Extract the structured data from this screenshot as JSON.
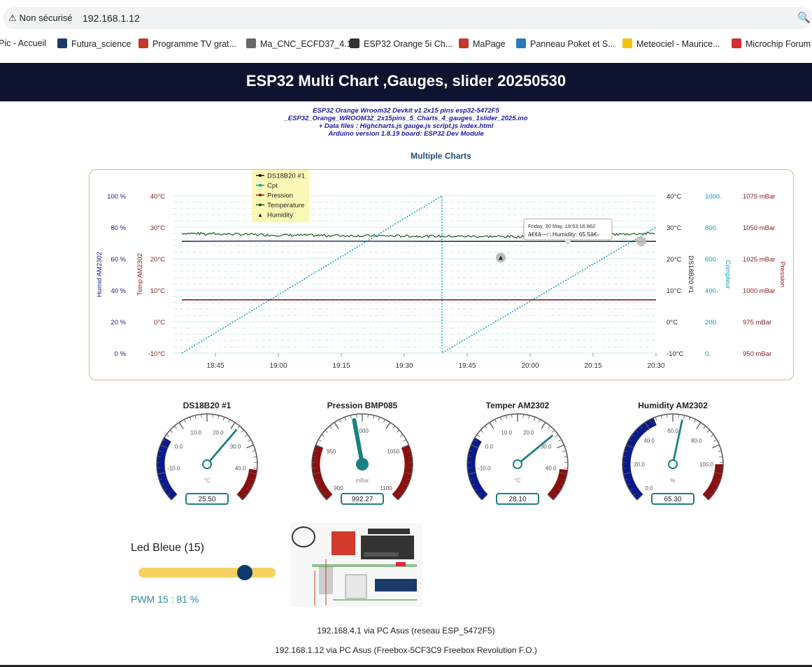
{
  "browser": {
    "security_label": "Non sécurisé",
    "url": "192.168.1.12",
    "bookmarks": [
      {
        "label": "Pic - Accueil",
        "color": "#ffffff"
      },
      {
        "label": "Futura_science",
        "color": "#1a3a6a"
      },
      {
        "label": "Programme TV grat...",
        "color": "#c0392b"
      },
      {
        "label": "Ma_CNC_ECFD37_4.1",
        "color": "#666666"
      },
      {
        "label": "ESP32 Orange 5i Ch...",
        "color": "#333333"
      },
      {
        "label": "MaPage",
        "color": "#c0392b"
      },
      {
        "label": "Panneau Poket et S...",
        "color": "#2a7ab8"
      },
      {
        "label": "Meteociel - Maurice...",
        "color": "#f4c20d"
      },
      {
        "label": "Microchip Forum",
        "color": "#d32f2f"
      }
    ]
  },
  "header": {
    "title": "ESP32 Multi Chart ,Gauges, slider 20250530",
    "info_lines": [
      "ESP32 Orange Wroom32 Devkit v1 2x15 pins esp32-5472F5",
      "_ESP32_Orange_WROOM32_2x15pins_5_Charts_4_gauges_1slider_2025.ino",
      "+ Data files : Highcharts.js gauge.js script.js index.html",
      "Arduino version 1.8.19 board: ESP32 Dev Module"
    ]
  },
  "chart": {
    "section_title": "Multiple Charts",
    "tooltip_date": "Friday, 30 May, 19:53:16.862",
    "tooltip_value": "â€¢â—□ Humidity: 65.5â€‹",
    "legend_marker": "▲"
  },
  "chart_data": {
    "type": "line",
    "title": "Multiple Charts",
    "x_ticks": [
      "18:45",
      "19:00",
      "19:15",
      "19:30",
      "19:45",
      "20:00",
      "20:15",
      "20:30"
    ],
    "xlim": [
      "18:35",
      "20:30"
    ],
    "legend_position": "top-left",
    "axes": [
      {
        "name": "Humid AM2302",
        "ticks": [
          "100 %",
          "80 %",
          "60 %",
          "40 %",
          "20 %",
          "0 %"
        ],
        "range": [
          0,
          100
        ],
        "color": "#1a1a8c"
      },
      {
        "name": "Temp AM2302",
        "ticks": [
          "40°C",
          "30°C",
          "20°C",
          "10°C",
          "0°C",
          "-10°C"
        ],
        "range": [
          -10,
          40
        ],
        "color": "#8b1a1a"
      },
      {
        "name": "DS18B20 #1",
        "ticks": [
          "40°C",
          "30°C",
          "20°C",
          "10°C",
          "0°C",
          "-10°C"
        ],
        "range": [
          -10,
          40
        ],
        "color": "#222222"
      },
      {
        "name": "Compteur",
        "ticks": [
          "1000.",
          "800.",
          "600.",
          "400.",
          "200.",
          "0."
        ],
        "range": [
          0,
          1000
        ],
        "color": "#0aa0b8"
      },
      {
        "name": "Pression",
        "ticks": [
          "1075 mBar",
          "1050 mBar",
          "1025 mBar",
          "1000 mBar",
          "975 mBar",
          "950 mBar"
        ],
        "range": [
          950,
          1075
        ],
        "color": "#8b1a1a"
      }
    ],
    "series": [
      {
        "name": "DS18B20 #1",
        "color": "#111111",
        "points": [
          [
            "18:37",
            25.5
          ],
          [
            "18:55",
            25.6
          ],
          [
            "19:40",
            25.5
          ],
          [
            "20:30",
            25.5
          ]
        ]
      },
      {
        "name": "Cpt",
        "color": "#0aa0b8",
        "points": [
          [
            "18:37",
            0
          ],
          [
            "19:39",
            1000
          ],
          [
            "19:39",
            0
          ],
          [
            "20:30",
            800
          ]
        ]
      },
      {
        "name": "Pression",
        "color": "#8b1a1a",
        "points": [
          [
            "18:37",
            992.3
          ],
          [
            "20:30",
            992.3
          ]
        ]
      },
      {
        "name": "Temperature",
        "color": "#1a5c1a",
        "points": [
          [
            "18:37",
            28.1
          ],
          [
            "19:00",
            27.5
          ],
          [
            "19:30",
            27.2
          ],
          [
            "20:00",
            27.0
          ],
          [
            "20:30",
            28.1
          ]
        ]
      },
      {
        "name": "Humidity",
        "color": "#111111",
        "points": [
          [
            "19:53",
            65.5
          ]
        ]
      }
    ]
  },
  "gauges": [
    {
      "title": "DS18B20 #1",
      "unit": "°C",
      "value": 25.5,
      "display": "25.50",
      "min": -20,
      "max": 50,
      "ticks": [
        {
          "v": -10,
          "label": "-10.0"
        },
        {
          "v": 0,
          "label": "0.0"
        },
        {
          "v": 10,
          "label": "10.0"
        },
        {
          "v": 20,
          "label": "20.0"
        },
        {
          "v": 30,
          "label": "30.0"
        },
        {
          "v": 40,
          "label": "40.0"
        }
      ],
      "bands": [
        {
          "from": -20,
          "to": 0,
          "color": "#0a1a8c"
        },
        {
          "from": 40,
          "to": 50,
          "color": "#8b1010"
        }
      ]
    },
    {
      "title": "Pression BMP085",
      "unit": "mBar",
      "value": 992.27,
      "display": "992.27",
      "min": 900,
      "max": 1100,
      "ticks": [
        {
          "v": 900,
          "label": "900"
        },
        {
          "v": 950,
          "label": "950"
        },
        {
          "v": 1000,
          "label": "1000"
        },
        {
          "v": 1050,
          "label": "1050"
        },
        {
          "v": 1100,
          "label": "1100"
        }
      ],
      "bands": [
        {
          "from": 900,
          "to": 950,
          "color": "#8b1010"
        },
        {
          "from": 1050,
          "to": 1100,
          "color": "#8b1010"
        }
      ]
    },
    {
      "title": "Temper AM2302",
      "unit": "°C",
      "value": 28.1,
      "display": "28.10",
      "min": -20,
      "max": 50,
      "ticks": [
        {
          "v": -10,
          "label": "-10.0"
        },
        {
          "v": 0,
          "label": "0.0"
        },
        {
          "v": 10,
          "label": "10.0"
        },
        {
          "v": 20,
          "label": "20.0"
        },
        {
          "v": 30,
          "label": "30.0"
        },
        {
          "v": 40,
          "label": "40.0"
        }
      ],
      "bands": [
        {
          "from": -20,
          "to": 0,
          "color": "#0a1a8c"
        },
        {
          "from": 40,
          "to": 50,
          "color": "#8b1010"
        }
      ]
    },
    {
      "title": "Humidity AM2302",
      "unit": "%",
      "value": 65.3,
      "display": "65.30",
      "min": 0,
      "max": 120,
      "ticks": [
        {
          "v": 0,
          "label": "0.0"
        },
        {
          "v": 20,
          "label": "20.0"
        },
        {
          "v": 40,
          "label": "40.0"
        },
        {
          "v": 60,
          "label": "60.0"
        },
        {
          "v": 80,
          "label": "80.0"
        },
        {
          "v": 100,
          "label": "100.0"
        }
      ],
      "bands": [
        {
          "from": 0,
          "to": 50,
          "color": "#0a1a8c"
        },
        {
          "from": 100,
          "to": 120,
          "color": "#8b1010"
        }
      ]
    }
  ],
  "slider": {
    "label": "Led Bleue (15)",
    "pwm_text": "PWM 15 : 81 %",
    "value_percent": 81
  },
  "footer": {
    "line1": "192.168.4.1 via PC Asus (reseau ESP_5472F5)",
    "line2": "192.168.1.12 via PC Asus (Freebox-5CF3C9 Freebox Revolution F.O.)"
  }
}
